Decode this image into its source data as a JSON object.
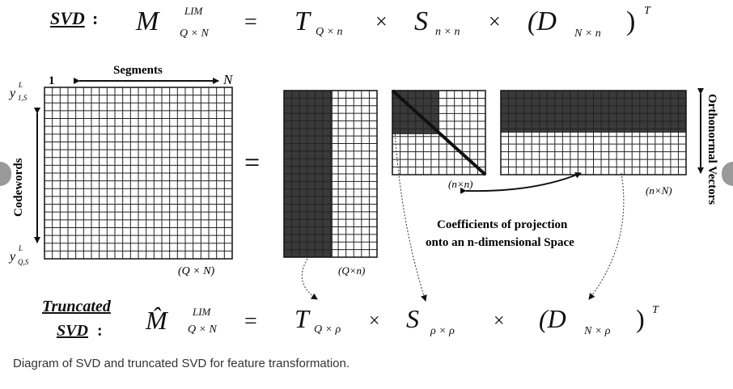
{
  "top_equation": {
    "label": "SVD",
    "colon": ":",
    "M": "M",
    "M_sup": "LIM",
    "M_sub": "Q × N",
    "equals": "=",
    "T": "T",
    "T_sub": "Q × n",
    "times1": "×",
    "S": "S",
    "S_sub": "n × n",
    "times2": "×",
    "D_open": "(D",
    "D_sub": "N × n",
    "D_close": ")",
    "D_sup": "T"
  },
  "matrix_labels": {
    "segments": "Segments",
    "one": "1",
    "N": "N",
    "codewords": "Codewords",
    "y_top": "y",
    "y_top_sup": "L",
    "y_top_sub": "1,S",
    "y_bot": "y",
    "y_bot_sup": "L",
    "y_bot_sub": "Q,S",
    "equals": "=",
    "M_dim": "(Q × N)",
    "T_dim": "(Q×n)",
    "S_dim": "(n×n)",
    "D_dim": "(n×N)",
    "orthonormal": "Orthonormal Vectors",
    "coeff_line1": "Coefficients of projection",
    "coeff_line2": "onto an n-dimensional Space"
  },
  "bottom_equation": {
    "label_line1": "Truncated",
    "label_line2": "SVD",
    "colon": ":",
    "M": "M̂",
    "M_sup": "LIM",
    "M_sub": "Q × N",
    "equals": "=",
    "T": "T",
    "T_sub": "Q × ρ",
    "times1": "×",
    "S": "S",
    "S_sub": "ρ × ρ",
    "times2": "×",
    "D_open": "(D",
    "D_sub": "N × ρ",
    "D_close": ")",
    "D_sup": "T"
  },
  "caption": "Diagram of SVD and truncated SVD for feature transformation."
}
